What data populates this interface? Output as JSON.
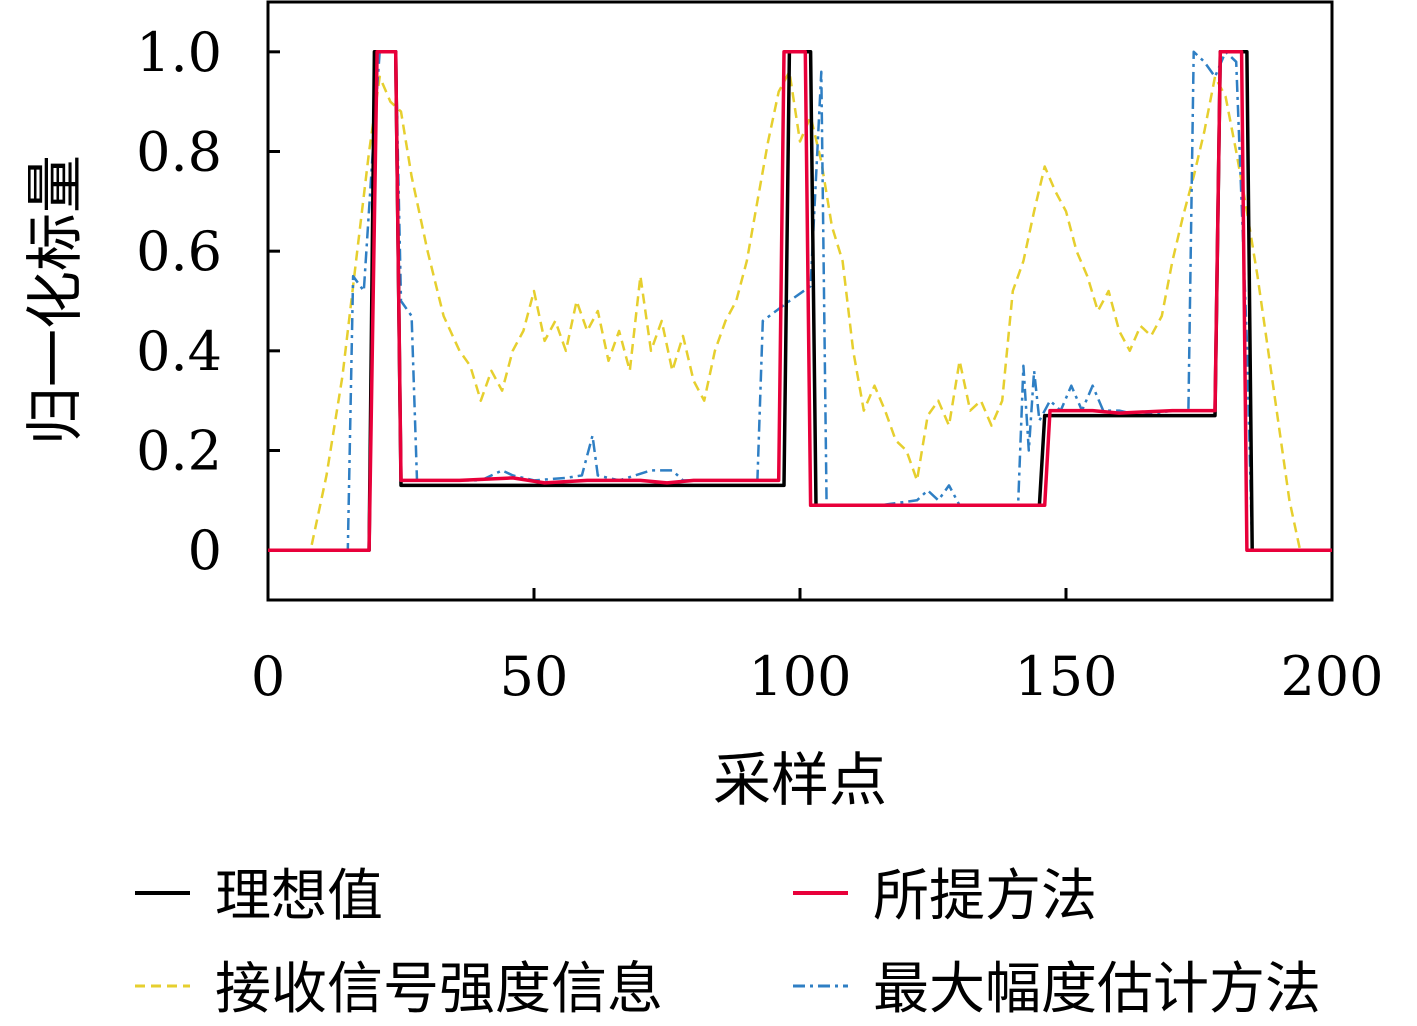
{
  "chart_data": {
    "type": "line",
    "title": "",
    "xlabel": "采样点",
    "ylabel": "归一化标量",
    "xlim": [
      0,
      200
    ],
    "ylim": [
      -0.1,
      1.1
    ],
    "xticks": [
      0,
      50,
      100,
      150,
      200
    ],
    "xtick_labels": [
      "0",
      "50",
      "100",
      "150",
      "200"
    ],
    "yticks": [
      0,
      0.2,
      0.4,
      0.6,
      0.8,
      1.0
    ],
    "ytick_labels": [
      "0",
      "0.2",
      "0.4",
      "0.6",
      "0.8",
      "1.0"
    ],
    "grid": false,
    "legend_position": "bottom",
    "series": [
      {
        "name": "理想值",
        "color": "#000000",
        "style": "solid",
        "points": [
          [
            0,
            0
          ],
          [
            19,
            0
          ],
          [
            20,
            1.0
          ],
          [
            24,
            1.0
          ],
          [
            25,
            0.13
          ],
          [
            97,
            0.13
          ],
          [
            98,
            1.0
          ],
          [
            102,
            1.0
          ],
          [
            103,
            0.09
          ],
          [
            145,
            0.09
          ],
          [
            146,
            0.27
          ],
          [
            178,
            0.27
          ],
          [
            179,
            1.0
          ],
          [
            184,
            1.0
          ],
          [
            185,
            0
          ],
          [
            200,
            0
          ]
        ]
      },
      {
        "name": "所提方法",
        "color": "#e8003a",
        "style": "solid",
        "points": [
          [
            0,
            0
          ],
          [
            19,
            0
          ],
          [
            20.5,
            1.0
          ],
          [
            24,
            1.0
          ],
          [
            25,
            0.14
          ],
          [
            36,
            0.14
          ],
          [
            46,
            0.145
          ],
          [
            52,
            0.135
          ],
          [
            60,
            0.14
          ],
          [
            70,
            0.14
          ],
          [
            75,
            0.135
          ],
          [
            80,
            0.14
          ],
          [
            96,
            0.14
          ],
          [
            97,
            1.0
          ],
          [
            101,
            1.0
          ],
          [
            102,
            0.09
          ],
          [
            146,
            0.09
          ],
          [
            147,
            0.28
          ],
          [
            155,
            0.28
          ],
          [
            160,
            0.275
          ],
          [
            170,
            0.28
          ],
          [
            178,
            0.28
          ],
          [
            179,
            1.0
          ],
          [
            183,
            1.0
          ],
          [
            184,
            0
          ],
          [
            200,
            0
          ]
        ]
      },
      {
        "name": "接收信号强度信息",
        "color": "#e6cf2e",
        "style": "dashed",
        "points": [
          [
            0,
            0
          ],
          [
            8,
            0
          ],
          [
            11,
            0.15
          ],
          [
            14,
            0.35
          ],
          [
            17,
            0.62
          ],
          [
            19,
            0.8
          ],
          [
            21,
            0.95
          ],
          [
            23,
            0.9
          ],
          [
            25,
            0.88
          ],
          [
            27,
            0.75
          ],
          [
            30,
            0.6
          ],
          [
            33,
            0.47
          ],
          [
            36,
            0.4
          ],
          [
            38,
            0.37
          ],
          [
            40,
            0.3
          ],
          [
            42,
            0.36
          ],
          [
            44,
            0.32
          ],
          [
            46,
            0.4
          ],
          [
            48,
            0.44
          ],
          [
            50,
            0.52
          ],
          [
            52,
            0.42
          ],
          [
            54,
            0.46
          ],
          [
            56,
            0.4
          ],
          [
            58,
            0.5
          ],
          [
            60,
            0.44
          ],
          [
            62,
            0.48
          ],
          [
            64,
            0.38
          ],
          [
            66,
            0.44
          ],
          [
            68,
            0.36
          ],
          [
            70,
            0.55
          ],
          [
            72,
            0.4
          ],
          [
            74,
            0.46
          ],
          [
            76,
            0.36
          ],
          [
            78,
            0.43
          ],
          [
            80,
            0.34
          ],
          [
            82,
            0.3
          ],
          [
            84,
            0.4
          ],
          [
            86,
            0.46
          ],
          [
            88,
            0.5
          ],
          [
            90,
            0.58
          ],
          [
            92,
            0.7
          ],
          [
            94,
            0.82
          ],
          [
            96,
            0.92
          ],
          [
            98,
            0.96
          ],
          [
            100,
            0.82
          ],
          [
            102,
            0.87
          ],
          [
            104,
            0.78
          ],
          [
            106,
            0.65
          ],
          [
            108,
            0.58
          ],
          [
            110,
            0.4
          ],
          [
            112,
            0.28
          ],
          [
            114,
            0.33
          ],
          [
            116,
            0.28
          ],
          [
            118,
            0.22
          ],
          [
            120,
            0.2
          ],
          [
            122,
            0.14
          ],
          [
            124,
            0.27
          ],
          [
            126,
            0.3
          ],
          [
            128,
            0.25
          ],
          [
            130,
            0.38
          ],
          [
            132,
            0.28
          ],
          [
            134,
            0.3
          ],
          [
            136,
            0.25
          ],
          [
            138,
            0.3
          ],
          [
            140,
            0.52
          ],
          [
            142,
            0.58
          ],
          [
            144,
            0.68
          ],
          [
            146,
            0.77
          ],
          [
            148,
            0.72
          ],
          [
            150,
            0.68
          ],
          [
            152,
            0.6
          ],
          [
            154,
            0.55
          ],
          [
            156,
            0.48
          ],
          [
            158,
            0.52
          ],
          [
            160,
            0.44
          ],
          [
            162,
            0.4
          ],
          [
            164,
            0.45
          ],
          [
            166,
            0.43
          ],
          [
            168,
            0.47
          ],
          [
            170,
            0.58
          ],
          [
            172,
            0.67
          ],
          [
            174,
            0.75
          ],
          [
            176,
            0.84
          ],
          [
            178,
            0.95
          ],
          [
            180,
            0.91
          ],
          [
            182,
            0.8
          ],
          [
            184,
            0.68
          ],
          [
            186,
            0.55
          ],
          [
            188,
            0.4
          ],
          [
            190,
            0.25
          ],
          [
            192,
            0.1
          ],
          [
            194,
            0
          ],
          [
            200,
            0
          ]
        ]
      },
      {
        "name": "最大幅度估计方法",
        "color": "#2f7fc4",
        "style": "dashdot",
        "points": [
          [
            0,
            0
          ],
          [
            15,
            0
          ],
          [
            16,
            0.55
          ],
          [
            18,
            0.52
          ],
          [
            20,
            0.85
          ],
          [
            21,
            1.0
          ],
          [
            24,
            1.0
          ],
          [
            25,
            0.5
          ],
          [
            27,
            0.47
          ],
          [
            28,
            0.14
          ],
          [
            40,
            0.14
          ],
          [
            44,
            0.16
          ],
          [
            46,
            0.15
          ],
          [
            50,
            0.14
          ],
          [
            56,
            0.145
          ],
          [
            59,
            0.15
          ],
          [
            61,
            0.23
          ],
          [
            62,
            0.15
          ],
          [
            66,
            0.14
          ],
          [
            72,
            0.16
          ],
          [
            76,
            0.16
          ],
          [
            78,
            0.14
          ],
          [
            92,
            0.14
          ],
          [
            93,
            0.46
          ],
          [
            98,
            0.5
          ],
          [
            102,
            0.53
          ],
          [
            104,
            0.96
          ],
          [
            105,
            0.09
          ],
          [
            115,
            0.09
          ],
          [
            122,
            0.1
          ],
          [
            124,
            0.12
          ],
          [
            126,
            0.1
          ],
          [
            128,
            0.13
          ],
          [
            130,
            0.09
          ],
          [
            141,
            0.09
          ],
          [
            142,
            0.37
          ],
          [
            143,
            0.2
          ],
          [
            144,
            0.36
          ],
          [
            145,
            0.26
          ],
          [
            147,
            0.3
          ],
          [
            149,
            0.28
          ],
          [
            151,
            0.33
          ],
          [
            153,
            0.28
          ],
          [
            155,
            0.33
          ],
          [
            157,
            0.28
          ],
          [
            160,
            0.28
          ],
          [
            164,
            0.27
          ],
          [
            170,
            0.28
          ],
          [
            173,
            0.28
          ],
          [
            174,
            1.0
          ],
          [
            176,
            0.98
          ],
          [
            178,
            0.95
          ],
          [
            180,
            1.0
          ],
          [
            182,
            0.98
          ],
          [
            184,
            0.42
          ],
          [
            185,
            0
          ],
          [
            200,
            0
          ]
        ]
      }
    ]
  }
}
